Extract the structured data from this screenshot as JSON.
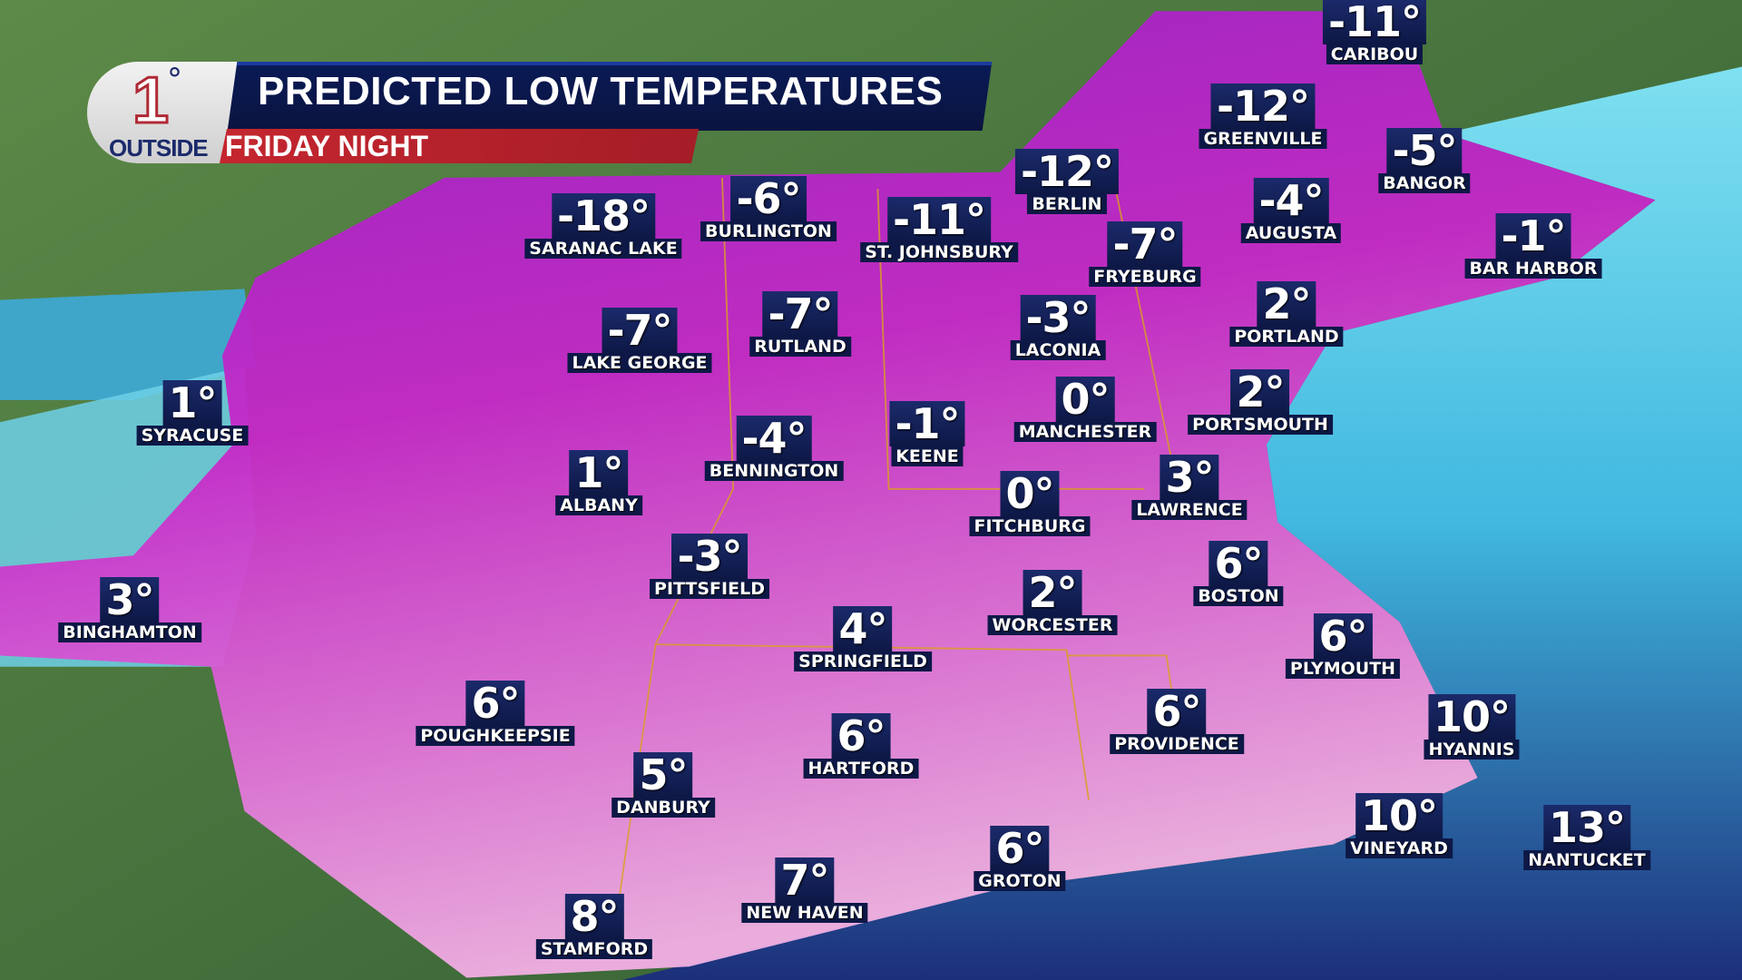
{
  "header": {
    "logo": {
      "number": "1",
      "degree": "°",
      "text": "OUTSIDE"
    },
    "title": "PREDICTED LOW TEMPERATURES",
    "subtitle": "FRIDAY NIGHT"
  },
  "colors": {
    "cold": "#c020c8",
    "mild": "#f0a0e0",
    "ocean": "#40c8e8",
    "label_bg": "#0d1846",
    "subtitle_bg": "#c4262f"
  },
  "cities": [
    {
      "name": "CARIBOU",
      "temp": "-11°"
    },
    {
      "name": "GREENVILLE",
      "temp": "-12°"
    },
    {
      "name": "BANGOR",
      "temp": "-5°"
    },
    {
      "name": "BERLIN",
      "temp": "-12°"
    },
    {
      "name": "AUGUSTA",
      "temp": "-4°"
    },
    {
      "name": "BAR HARBOR",
      "temp": "-1°"
    },
    {
      "name": "SARANAC LAKE",
      "temp": "-18°"
    },
    {
      "name": "BURLINGTON",
      "temp": "-6°"
    },
    {
      "name": "ST. JOHNSBURY",
      "temp": "-11°"
    },
    {
      "name": "FRYEBURG",
      "temp": "-7°"
    },
    {
      "name": "PORTLAND",
      "temp": "2°"
    },
    {
      "name": "LAKE GEORGE",
      "temp": "-7°"
    },
    {
      "name": "RUTLAND",
      "temp": "-7°"
    },
    {
      "name": "LACONIA",
      "temp": "-3°"
    },
    {
      "name": "SYRACUSE",
      "temp": "1°"
    },
    {
      "name": "MANCHESTER",
      "temp": "0°"
    },
    {
      "name": "PORTSMOUTH",
      "temp": "2°"
    },
    {
      "name": "BENNINGTON",
      "temp": "-4°"
    },
    {
      "name": "KEENE",
      "temp": "-1°"
    },
    {
      "name": "ALBANY",
      "temp": "1°"
    },
    {
      "name": "FITCHBURG",
      "temp": "0°"
    },
    {
      "name": "LAWRENCE",
      "temp": "3°"
    },
    {
      "name": "BINGHAMTON",
      "temp": "3°"
    },
    {
      "name": "PITTSFIELD",
      "temp": "-3°"
    },
    {
      "name": "BOSTON",
      "temp": "6°"
    },
    {
      "name": "WORCESTER",
      "temp": "2°"
    },
    {
      "name": "SPRINGFIELD",
      "temp": "4°"
    },
    {
      "name": "PLYMOUTH",
      "temp": "6°"
    },
    {
      "name": "POUGHKEEPSIE",
      "temp": "6°"
    },
    {
      "name": "PROVIDENCE",
      "temp": "6°"
    },
    {
      "name": "HYANNIS",
      "temp": "10°"
    },
    {
      "name": "HARTFORD",
      "temp": "6°"
    },
    {
      "name": "DANBURY",
      "temp": "5°"
    },
    {
      "name": "VINEYARD",
      "temp": "10°"
    },
    {
      "name": "NANTUCKET",
      "temp": "13°"
    },
    {
      "name": "GROTON",
      "temp": "6°"
    },
    {
      "name": "NEW HAVEN",
      "temp": "7°"
    },
    {
      "name": "STAMFORD",
      "temp": "8°"
    }
  ]
}
